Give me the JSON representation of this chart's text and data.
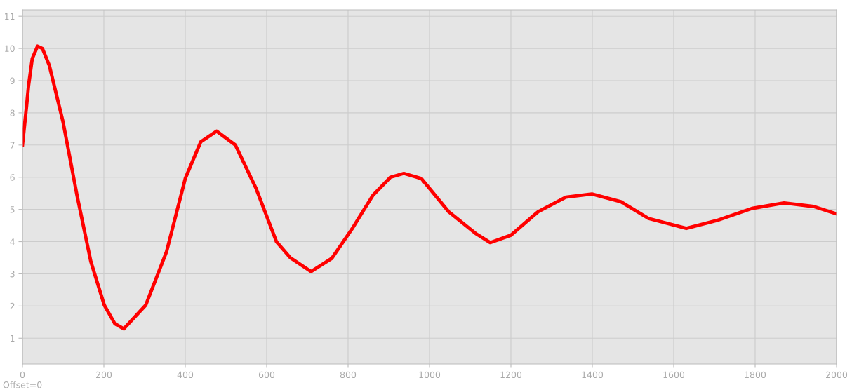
{
  "chart_data": {
    "type": "line",
    "x": [
      0,
      10,
      15,
      24,
      37,
      49,
      66,
      100,
      134,
      168,
      201,
      227,
      249,
      303,
      354,
      400,
      438,
      477,
      523,
      574,
      624,
      658,
      709,
      760,
      810,
      861,
      904,
      937,
      980,
      1047,
      1115,
      1149,
      1200,
      1267,
      1335,
      1399,
      1470,
      1538,
      1631,
      1707,
      1792,
      1871,
      1944,
      2000
    ],
    "series": [
      {
        "color": "#ff0000",
        "values": [
          7.0,
          8.2,
          8.85,
          9.68,
          10.07,
          10.0,
          9.47,
          7.7,
          5.44,
          3.38,
          2.03,
          1.45,
          1.29,
          2.03,
          3.69,
          5.96,
          7.1,
          7.43,
          7.0,
          5.65,
          4.0,
          3.5,
          3.07,
          3.48,
          4.4,
          5.44,
          6.0,
          6.12,
          5.96,
          4.93,
          4.24,
          3.97,
          4.2,
          4.93,
          5.38,
          5.48,
          5.24,
          4.72,
          4.41,
          4.66,
          5.03,
          5.2,
          5.09,
          4.86
        ]
      }
    ],
    "xlim": [
      0,
      2000
    ],
    "ylim": [
      0.2,
      11.2
    ],
    "xticks": [
      0,
      200,
      400,
      600,
      800,
      1000,
      1200,
      1400,
      1600,
      1800,
      2000
    ],
    "yticks": [
      1,
      2,
      3,
      4,
      5,
      6,
      7,
      8,
      9,
      10,
      11
    ],
    "grid": true,
    "marker": "none",
    "line_style": "solid",
    "legend": false,
    "annotations": [
      "Offset=0"
    ]
  }
}
